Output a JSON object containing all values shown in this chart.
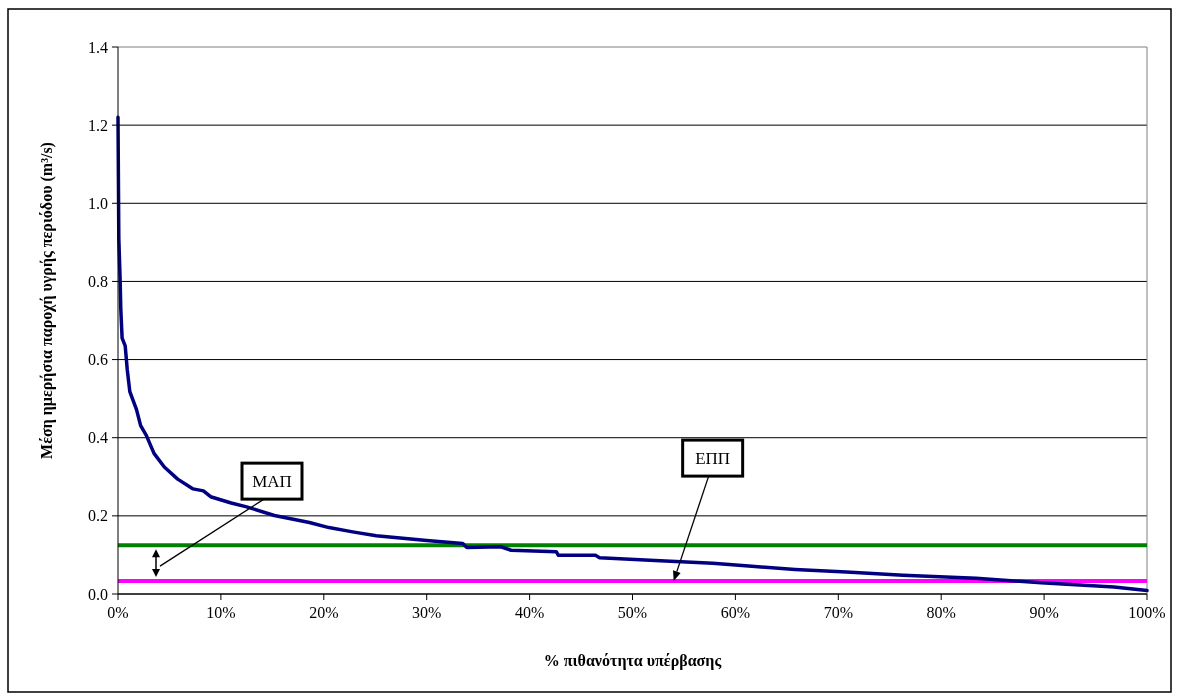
{
  "chart_data": {
    "type": "line",
    "xlabel": "% πιθανότητα υπέρβασης",
    "ylabel": "Μέση ημερήσια παροχή υγρής περιόδου (m³/s)",
    "x": [
      0,
      0.08,
      0.2,
      0.27,
      0.4,
      0.7,
      0.9,
      1.15,
      1.8,
      2.2,
      2.75,
      3.5,
      4.5,
      5.8,
      7.3,
      8.3,
      9.0,
      11,
      12.5,
      15.2,
      18.6,
      20.5,
      22.8,
      25.1,
      30,
      33.5,
      33.9,
      37.2,
      38.2,
      42.6,
      42.8,
      46.4,
      46.8,
      52.7,
      57.8,
      61.6,
      65.8,
      70.8,
      76.3,
      83.4,
      89.7,
      96.8,
      100
    ],
    "series": [
      {
        "color": "#000080",
        "values": [
          1.22,
          0.91,
          0.81,
          0.73,
          0.655,
          0.635,
          0.574,
          0.518,
          0.472,
          0.431,
          0.406,
          0.36,
          0.325,
          0.294,
          0.269,
          0.264,
          0.249,
          0.233,
          0.223,
          0.201,
          0.183,
          0.17,
          0.159,
          0.149,
          0.137,
          0.129,
          0.119,
          0.121,
          0.112,
          0.108,
          0.099,
          0.099,
          0.093,
          0.085,
          0.079,
          0.071,
          0.063,
          0.056,
          0.048,
          0.04,
          0.029,
          0.018,
          0.009
        ]
      }
    ],
    "xlim": [
      0,
      100
    ],
    "xticks": [
      {
        "value": 0,
        "label": "0%"
      },
      {
        "value": 10,
        "label": "10%"
      },
      {
        "value": 20,
        "label": "20%"
      },
      {
        "value": 30,
        "label": "30%"
      },
      {
        "value": 40,
        "label": "40%"
      },
      {
        "value": 50,
        "label": "50%"
      },
      {
        "value": 60,
        "label": "60%"
      },
      {
        "value": 70,
        "label": "70%"
      },
      {
        "value": 80,
        "label": "80%"
      },
      {
        "value": 90,
        "label": "90%"
      },
      {
        "value": 100,
        "label": "100%"
      }
    ],
    "ylim": [
      0,
      1.4
    ],
    "yticks": [
      {
        "value": 0,
        "label": "0.0"
      },
      {
        "value": 0.2,
        "label": "0.2"
      },
      {
        "value": 0.4,
        "label": "0.4"
      },
      {
        "value": 0.6,
        "label": "0.6"
      },
      {
        "value": 0.8,
        "label": "0.8"
      },
      {
        "value": 1,
        "label": "1.0"
      },
      {
        "value": 1.2,
        "label": "1.2"
      },
      {
        "value": 1.4,
        "label": "1.4"
      }
    ],
    "grid": "y",
    "marker": "none",
    "line_style": "solid",
    "ref_lines": [
      {
        "axis": "y",
        "value": 0.125,
        "color": "#008000"
      },
      {
        "axis": "y",
        "value": 0.033,
        "color": "#ff00ff",
        "label": "ΕΠΠ"
      }
    ],
    "annotations": [
      "ΜΑΠ"
    ]
  }
}
